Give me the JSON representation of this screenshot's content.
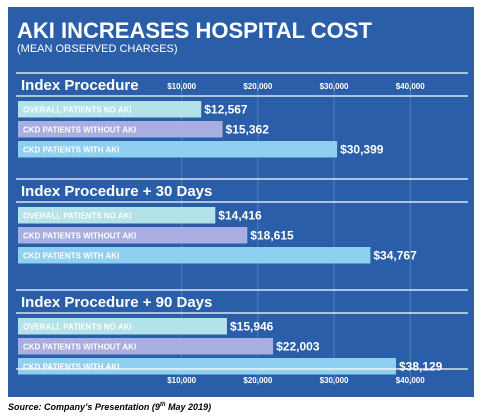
{
  "chart_data": {
    "type": "bar",
    "orientation": "horizontal",
    "title": "AKI INCREASES HOSPITAL COST",
    "subtitle": "(MEAN OBSERVED CHARGES)",
    "x_ticks": [
      "$10,000",
      "$20,000",
      "$30,000",
      "$40,000"
    ],
    "x_tick_values": [
      10000,
      20000,
      30000,
      40000
    ],
    "xlim": [
      -12400,
      46400
    ],
    "grid": true,
    "categories": [
      "OVERALL PATIENTS NO AKI",
      "CKD PATIENTS WITHOUT AKI",
      "CKD PATIENTS WITH AKI"
    ],
    "category_colors": [
      "#b3e2e8",
      "#a8aee0",
      "#8fd0f0"
    ],
    "groups": [
      {
        "name": "Index Procedure",
        "values": [
          12567,
          15362,
          30399
        ],
        "value_labels": [
          "$12,567",
          "$15,362",
          "$30,399"
        ]
      },
      {
        "name": "Index Procedure + 30 Days",
        "values": [
          14416,
          18615,
          34767
        ],
        "value_labels": [
          "$14,416",
          "$18,615",
          "$34,767"
        ]
      },
      {
        "name": "Index Procedure + 90 Days",
        "values": [
          15946,
          22003,
          38129
        ],
        "value_labels": [
          "$15,946",
          "$22,003",
          "$38,129"
        ]
      }
    ],
    "colors": {
      "background": "#2a5ea8",
      "text": "#ffffff",
      "gridline": "#4f7fbd",
      "divider": "#ffffff"
    }
  },
  "source": {
    "prefix": "Source: Company’s Presentation (9",
    "sup": "th",
    "suffix": " May 2019)"
  }
}
